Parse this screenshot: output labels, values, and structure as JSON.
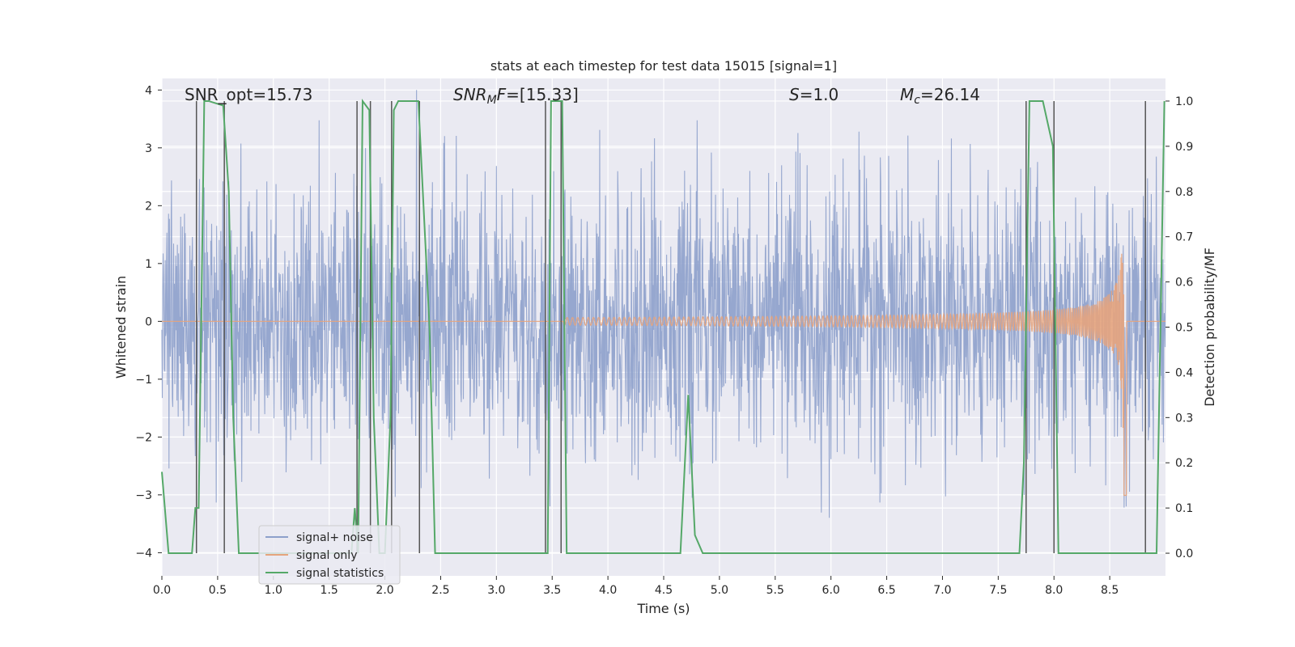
{
  "chart_data": {
    "type": "line",
    "title": "stats at each timestep for test data 15015 [signal=1]",
    "xlabel": "Time (s)",
    "ylabel_left": "Whitened strain",
    "ylabel_right": "Detection probability/MF",
    "xlim": [
      0.0,
      9.0
    ],
    "ylim_left": [
      -4.4,
      4.2
    ],
    "ylim_right": [
      -0.05,
      1.05
    ],
    "x_ticks": [
      "0.0",
      "0.5",
      "1.0",
      "1.5",
      "2.0",
      "2.5",
      "3.0",
      "3.5",
      "4.0",
      "4.5",
      "5.0",
      "5.5",
      "6.0",
      "6.5",
      "7.0",
      "7.5",
      "8.0",
      "8.5"
    ],
    "y_ticks_left": [
      "−4",
      "−3",
      "−2",
      "−1",
      "0",
      "1",
      "2",
      "3",
      "4"
    ],
    "y_ticks_right": [
      "0.0",
      "0.1",
      "0.2",
      "0.3",
      "0.4",
      "0.5",
      "0.6",
      "0.7",
      "0.8",
      "0.9",
      "1.0"
    ],
    "grid": true,
    "legend_position": "lower-left",
    "annotations": [
      "SNR_opt=15.73",
      "[15.33]",
      "=1.0",
      "=26.14"
    ],
    "annotation_math": {
      "snr": "SNR",
      "snr_sub": "M",
      "snr_tail": "F=",
      "s": "S",
      "mc": "M",
      "mc_sub": "c"
    },
    "series": [
      {
        "name": "signal+ noise",
        "color": "#8da0cb",
        "band_std": 1.0,
        "band_range": [
          -4.0,
          4.0
        ],
        "axis": "left"
      },
      {
        "name": "signal only",
        "color": "#e5a47d",
        "chirp_peak_time": 8.63,
        "chirp_peak_amplitude": 3.35,
        "axis": "left"
      },
      {
        "name": "signal statistics",
        "color": "#55a868",
        "axis": "right",
        "x": [
          0.0,
          0.06,
          0.2,
          0.27,
          0.3,
          0.33,
          0.38,
          0.42,
          0.55,
          0.6,
          0.64,
          0.69,
          0.8,
          1.0,
          1.2,
          1.4,
          1.6,
          1.7,
          1.73,
          1.76,
          1.8,
          1.86,
          1.9,
          1.95,
          2.0,
          2.05,
          2.08,
          2.12,
          2.2,
          2.3,
          2.4,
          2.45,
          2.6,
          3.0,
          3.4,
          3.46,
          3.49,
          3.53,
          3.59,
          3.63,
          3.7,
          4.0,
          4.5,
          4.65,
          4.72,
          4.78,
          4.85,
          5.0,
          5.1,
          6.0,
          7.0,
          7.6,
          7.69,
          7.73,
          7.78,
          7.9,
          7.99,
          8.04,
          8.1,
          8.4,
          8.65,
          8.8,
          8.85,
          8.92,
          8.99
        ],
        "y": [
          0.18,
          0.0,
          0.0,
          0.0,
          0.1,
          0.1,
          1.0,
          1.0,
          0.99,
          0.8,
          0.3,
          0.0,
          0.0,
          0.0,
          0.0,
          0.0,
          0.0,
          0.0,
          0.1,
          0.0,
          1.0,
          0.98,
          0.3,
          0.0,
          0.0,
          0.3,
          0.98,
          1.0,
          1.0,
          1.0,
          0.5,
          0.0,
          0.0,
          0.0,
          0.0,
          0.0,
          1.0,
          1.0,
          1.0,
          0.0,
          0.0,
          0.0,
          0.0,
          0.0,
          0.35,
          0.04,
          0.0,
          0.0,
          0.0,
          0.0,
          0.0,
          0.0,
          0.0,
          0.2,
          1.0,
          1.0,
          0.9,
          0.0,
          0.0,
          0.0,
          0.0,
          0.0,
          0.0,
          0.0,
          1.0
        ]
      }
    ],
    "vertical_markers": [
      0.31,
      0.56,
      1.75,
      1.87,
      2.06,
      2.31,
      3.44,
      3.58,
      7.75,
      8.0,
      8.82
    ]
  }
}
